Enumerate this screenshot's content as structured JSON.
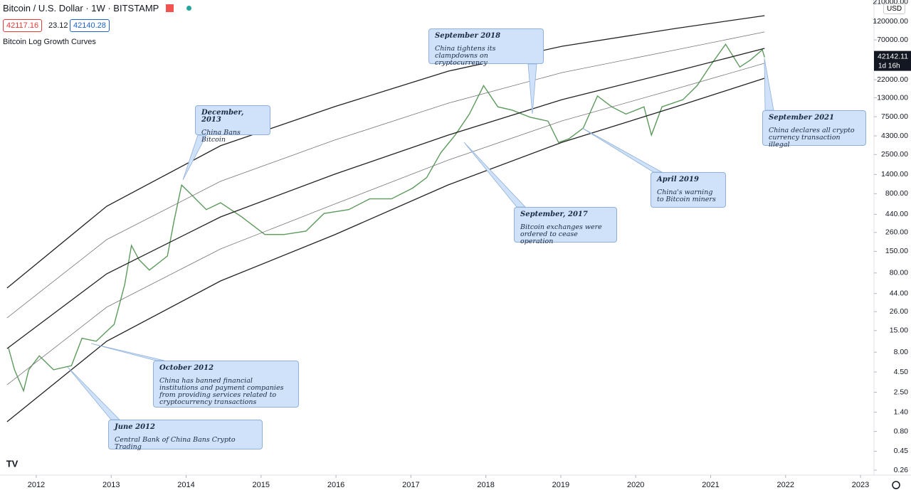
{
  "chart_data": {
    "type": "line",
    "title": "Bitcoin / U.S. Dollar · 1W · BITSTAMP",
    "ohlc_labels": [
      "42117.16",
      "23.12",
      "42140.28"
    ],
    "indicator": "Bitcoin Log Growth Curves",
    "currency": "USD",
    "last_price_label": "42142.11",
    "countdown": "1d 16h",
    "log_scale": true,
    "xlim": [
      2011.516,
      2023.18
    ],
    "xticks": [
      2012,
      2013,
      2014,
      2015,
      2016,
      2017,
      2018,
      2019,
      2020,
      2021,
      2022,
      2023
    ],
    "ylim": [
      0.225,
      223000
    ],
    "yticks": [
      {
        "value": 210000,
        "label": "210000.00"
      },
      {
        "value": 120000,
        "label": "120000.00"
      },
      {
        "value": 70000,
        "label": "70000.00"
      },
      {
        "value": 22000,
        "label": "22000.00"
      },
      {
        "value": 13000,
        "label": "13000.00"
      },
      {
        "value": 7500,
        "label": "7500.00"
      },
      {
        "value": 4300,
        "label": "4300.00"
      },
      {
        "value": 2500,
        "label": "2500.00"
      },
      {
        "value": 1400,
        "label": "1400.00"
      },
      {
        "value": 800,
        "label": "800.00"
      },
      {
        "value": 440,
        "label": "440.00"
      },
      {
        "value": 260,
        "label": "260.00"
      },
      {
        "value": 150,
        "label": "150.00"
      },
      {
        "value": 80,
        "label": "80.00"
      },
      {
        "value": 44,
        "label": "44.00"
      },
      {
        "value": 26,
        "label": "26.00"
      },
      {
        "value": 15,
        "label": "15.00"
      },
      {
        "value": 8,
        "label": "8.00"
      },
      {
        "value": 4.5,
        "label": "4.50"
      },
      {
        "value": 2.5,
        "label": "2.50"
      },
      {
        "value": 1.4,
        "label": "1.40"
      },
      {
        "value": 0.8,
        "label": "0.80"
      },
      {
        "value": 0.45,
        "label": "0.45"
      },
      {
        "value": 0.26,
        "label": "0.26"
      }
    ],
    "series": [
      {
        "color": "#5d9a5d",
        "x": [
          2011.63,
          2011.71,
          2011.83,
          2011.9,
          2012.04,
          2012.23,
          2012.47,
          2012.61,
          2012.8,
          2013.04,
          2013.18,
          2013.27,
          2013.37,
          2013.51,
          2013.75,
          2013.84,
          2013.94,
          2014.03,
          2014.27,
          2014.46,
          2014.74,
          2015.05,
          2015.31,
          2015.6,
          2015.84,
          2016.17,
          2016.45,
          2016.74,
          2017.02,
          2017.21,
          2017.4,
          2017.59,
          2017.78,
          2017.97,
          2018.16,
          2018.35,
          2018.59,
          2018.83,
          2018.97,
          2019.11,
          2019.3,
          2019.49,
          2019.68,
          2019.87,
          2020.11,
          2020.21,
          2020.35,
          2020.63,
          2020.82,
          2021.01,
          2021.2,
          2021.39,
          2021.53,
          2021.69,
          2021.72
        ],
        "values": [
          9,
          4.8,
          2.6,
          4.8,
          7.2,
          4.8,
          5.4,
          12,
          11,
          18,
          57,
          178,
          118,
          87,
          131,
          370,
          1030,
          850,
          505,
          615,
          410,
          245,
          245,
          270,
          450,
          505,
          690,
          690,
          940,
          1280,
          2650,
          4400,
          8100,
          18500,
          10000,
          9100,
          7400,
          6600,
          3550,
          3950,
          5400,
          13700,
          10000,
          8100,
          10000,
          4400,
          10000,
          12300,
          18500,
          34500,
          61600,
          31800,
          39000,
          52500,
          42142
        ]
      },
      {
        "color": "#222222",
        "x": [
          2011.61,
          2012.94,
          2014.46,
          2015.98,
          2017.5,
          2019.02,
          2020.54,
          2021.72
        ],
        "values": [
          51.6,
          556,
          3230,
          10050,
          28200,
          58200,
          97700,
          141600
        ]
      },
      {
        "color": "#777777",
        "x": [
          2011.61,
          2012.94,
          2014.46,
          2015.98,
          2017.5,
          2019.02,
          2020.54,
          2021.72
        ],
        "values": [
          21.7,
          211,
          1150,
          3800,
          11140,
          27100,
          52500,
          88100
        ]
      },
      {
        "color": "#222222",
        "x": [
          2011.61,
          2012.94,
          2014.46,
          2015.98,
          2017.5,
          2019.02,
          2020.54,
          2021.72
        ],
        "values": [
          8.9,
          78,
          408,
          1410,
          4400,
          12360,
          28200,
          54700
        ]
      },
      {
        "color": "#777777",
        "x": [
          2011.61,
          2012.94,
          2014.46,
          2015.98,
          2017.5,
          2019.02,
          2020.54,
          2021.72
        ],
        "values": [
          3.1,
          29.6,
          161,
          592,
          2130,
          6650,
          16900,
          35500
        ]
      },
      {
        "color": "#222222",
        "x": [
          2011.61,
          2012.94,
          2014.46,
          2015.98,
          2017.5,
          2019.02,
          2020.54,
          2021.72
        ],
        "values": [
          1.06,
          11.0,
          63.5,
          243,
          1035,
          3570,
          10050,
          22960
        ]
      }
    ],
    "annotations": [
      {
        "title": "September 2018",
        "text": "China tightens its clampdowns on cryptocurrency"
      },
      {
        "title": "December, 2013",
        "text": "China Bans Bitcoin"
      },
      {
        "title": "September 2021",
        "text": "China declares all crypto currency transaction illegal"
      },
      {
        "title": "April 2019",
        "text": "China's warning to Bitcoin miners"
      },
      {
        "title": "September, 2017",
        "text": "Bitcoin exchanges were ordered to cease operation"
      },
      {
        "title": "October 2012",
        "text": "China has banned financial institutions and payment companies from providing services related to cryptocurrency transactions"
      },
      {
        "title": "June 2012",
        "text": "Central Bank of China Bans Crypto Trading"
      }
    ]
  }
}
